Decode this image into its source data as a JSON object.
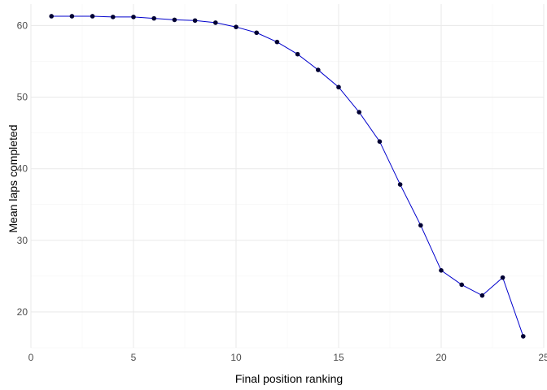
{
  "chart_data": {
    "type": "line",
    "xlabel": "Final position ranking",
    "ylabel": "Mean laps completed",
    "xlim": [
      0,
      25
    ],
    "ylim": [
      15,
      63
    ],
    "x_ticks": [
      0,
      5,
      10,
      15,
      20,
      25
    ],
    "y_ticks": [
      20,
      30,
      40,
      50,
      60
    ],
    "grid": true,
    "legend": "none",
    "line_color": "#0000cc",
    "point_color": "#000033",
    "grid_major_color": "#ebebeb",
    "grid_minor_color": "#f3f3f3",
    "series": [
      {
        "x": [
          1,
          2,
          3,
          4,
          5,
          6,
          7,
          8,
          9,
          10,
          11,
          12,
          13,
          14,
          15,
          16,
          17,
          18,
          19,
          20,
          21,
          22,
          23,
          24
        ],
        "y": [
          61.3,
          61.3,
          61.3,
          61.2,
          61.2,
          61.0,
          60.8,
          60.7,
          60.4,
          59.8,
          59.0,
          57.7,
          56.0,
          53.8,
          51.4,
          47.9,
          43.8,
          37.8,
          32.1,
          25.8,
          23.8,
          22.3,
          24.8,
          16.6
        ]
      }
    ]
  }
}
